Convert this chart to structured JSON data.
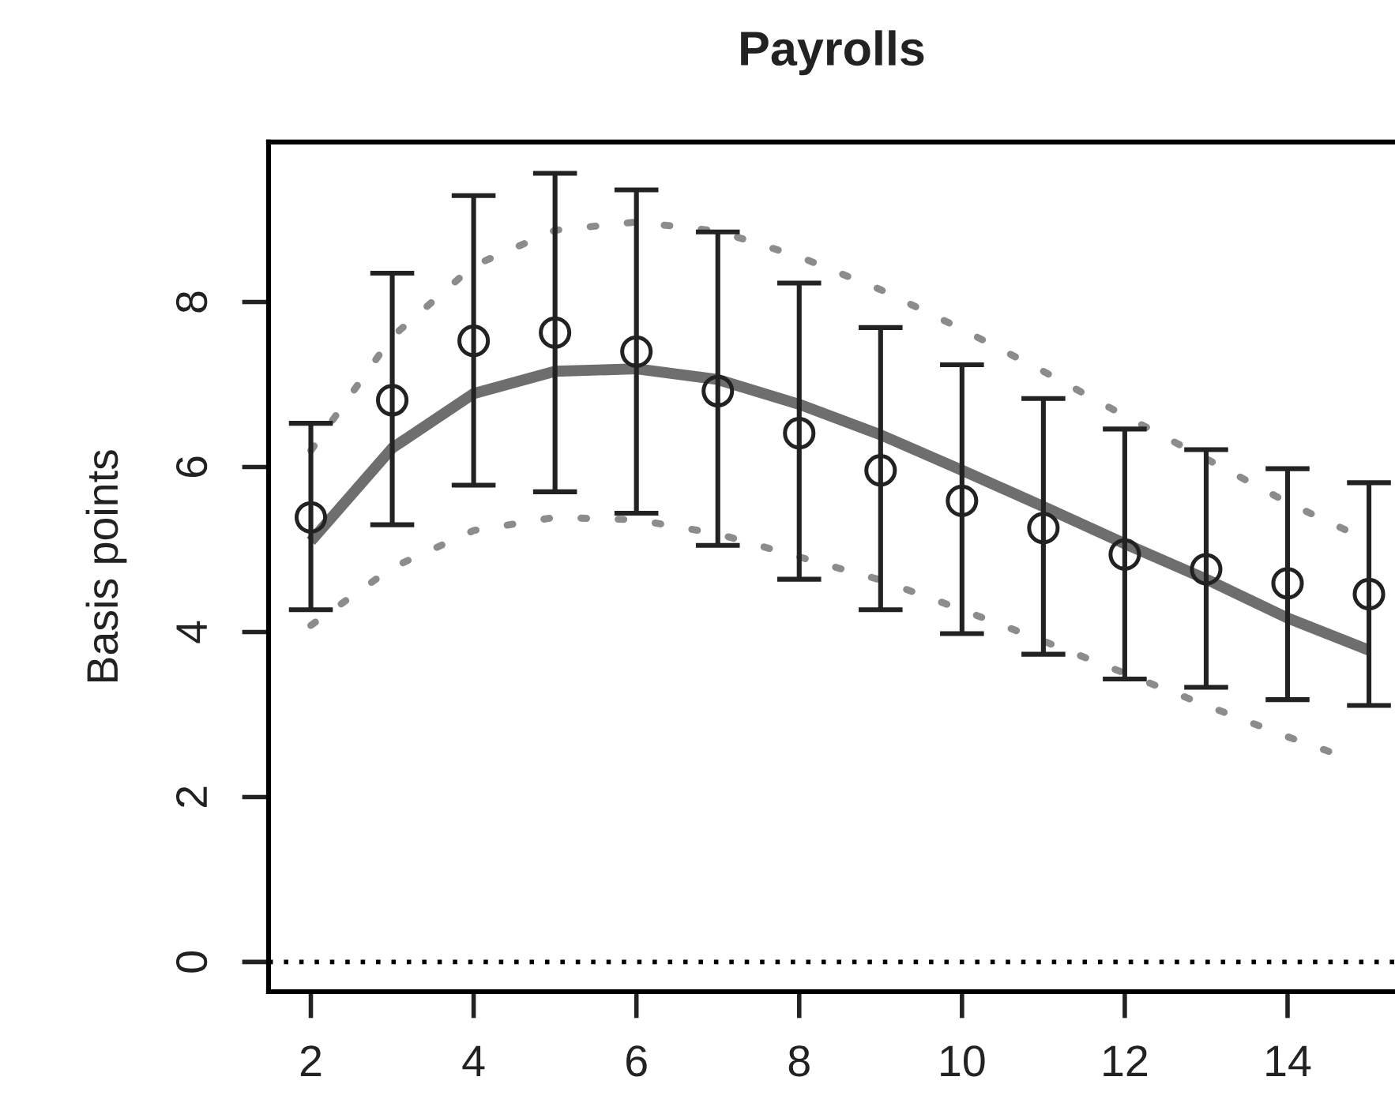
{
  "chart_data": {
    "type": "scatter",
    "title": "Payrolls",
    "ylabel": "Basis points",
    "x": [
      2,
      3,
      4,
      5,
      6,
      7,
      8,
      9,
      10,
      11,
      12,
      13,
      14,
      15
    ],
    "series": [
      {
        "color": "#222222",
        "marker": "circle",
        "values": [
          5.39,
          6.81,
          7.53,
          7.63,
          7.4,
          6.92,
          6.41,
          5.96,
          5.59,
          5.26,
          4.94,
          4.76,
          4.59,
          4.46
        ],
        "errors": [
          [
            4.27,
            6.53
          ],
          [
            5.3,
            8.35
          ],
          [
            5.78,
            9.29
          ],
          [
            5.7,
            9.56
          ],
          [
            5.44,
            9.36
          ],
          [
            5.05,
            8.85
          ],
          [
            4.64,
            8.23
          ],
          [
            4.27,
            7.69
          ],
          [
            3.98,
            7.24
          ],
          [
            3.73,
            6.83
          ],
          [
            3.43,
            6.46
          ],
          [
            3.33,
            6.21
          ],
          [
            3.18,
            5.98
          ],
          [
            3.11,
            5.81
          ]
        ]
      },
      {
        "type": "line",
        "color": "#6e6e6e",
        "line_style": "solid",
        "values": [
          5.1,
          6.23,
          6.89,
          7.16,
          7.19,
          7.06,
          6.76,
          6.39,
          5.96,
          5.52,
          5.07,
          4.64,
          4.17,
          3.78
        ]
      },
      {
        "type": "line",
        "color": "#8c8c8c",
        "line_style": "dotted",
        "x": [
          2,
          3,
          4,
          5,
          6,
          7,
          8,
          9,
          10,
          11,
          12,
          13,
          14,
          14.92
        ],
        "values": [
          6.2,
          7.58,
          8.44,
          8.87,
          8.97,
          8.86,
          8.55,
          8.15,
          7.67,
          7.16,
          6.62,
          6.1,
          5.57,
          5.14
        ]
      },
      {
        "type": "line",
        "color": "#8c8c8c",
        "line_style": "dotted",
        "x": [
          2,
          3,
          4,
          5,
          6,
          7,
          8,
          9,
          10,
          11,
          12,
          13,
          14,
          14.6
        ],
        "values": [
          4.08,
          4.78,
          5.23,
          5.39,
          5.36,
          5.19,
          4.91,
          4.63,
          4.27,
          3.89,
          3.5,
          3.11,
          2.73,
          2.52
        ]
      }
    ],
    "ref_lines": [
      {
        "axis": "y",
        "value": 0,
        "color": "#000000",
        "line_style": "dotted"
      }
    ],
    "xlim": [
      1.48,
      15.32
    ],
    "ylim": [
      -0.36,
      9.94
    ],
    "xticks": [
      2,
      4,
      6,
      8,
      10,
      12,
      14
    ],
    "yticks": [
      0,
      2,
      4,
      6,
      8
    ],
    "grid": false,
    "legend": false
  }
}
